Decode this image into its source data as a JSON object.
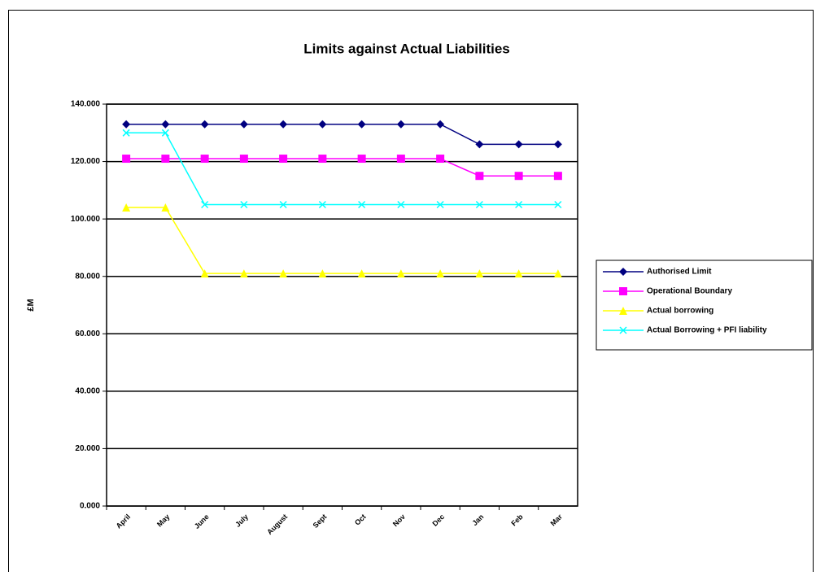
{
  "chart_data": {
    "type": "line",
    "title": "Limits against Actual Liabilities",
    "y_label": "£M",
    "categories": [
      "April",
      "May",
      "June",
      "July",
      "August",
      "Sept",
      "Oct",
      "Nov",
      "Dec",
      "Jan",
      "Feb",
      "Mar"
    ],
    "series": [
      {
        "name": "Authorised Limit",
        "color": "#000080",
        "marker": "diamond",
        "values": [
          133,
          133,
          133,
          133,
          133,
          133,
          133,
          133,
          133,
          126,
          126,
          126
        ]
      },
      {
        "name": "Operational Boundary",
        "color": "#ff00ff",
        "marker": "square",
        "values": [
          121,
          121,
          121,
          121,
          121,
          121,
          121,
          121,
          121,
          115,
          115,
          115
        ]
      },
      {
        "name": "Actual borrowing",
        "color": "#ffff00",
        "marker": "triangle",
        "values": [
          104,
          104,
          81,
          81,
          81,
          81,
          81,
          81,
          81,
          81,
          81,
          81
        ]
      },
      {
        "name": "Actual Borrowing + PFI liability",
        "color": "#00ffff",
        "marker": "x",
        "values": [
          130,
          130,
          105,
          105,
          105,
          105,
          105,
          105,
          105,
          105,
          105,
          105
        ]
      }
    ],
    "ylim": [
      0,
      140
    ],
    "yticks": [
      {
        "value": 0,
        "label": "0.000"
      },
      {
        "value": 20,
        "label": "20.000"
      },
      {
        "value": 40,
        "label": "40.000"
      },
      {
        "value": 60,
        "label": "60.000"
      },
      {
        "value": 80,
        "label": "80.000"
      },
      {
        "value": 100,
        "label": "100.000"
      },
      {
        "value": 120,
        "label": "120.000"
      },
      {
        "value": 140,
        "label": "140.000"
      }
    ],
    "grid": true,
    "legend": "right"
  }
}
